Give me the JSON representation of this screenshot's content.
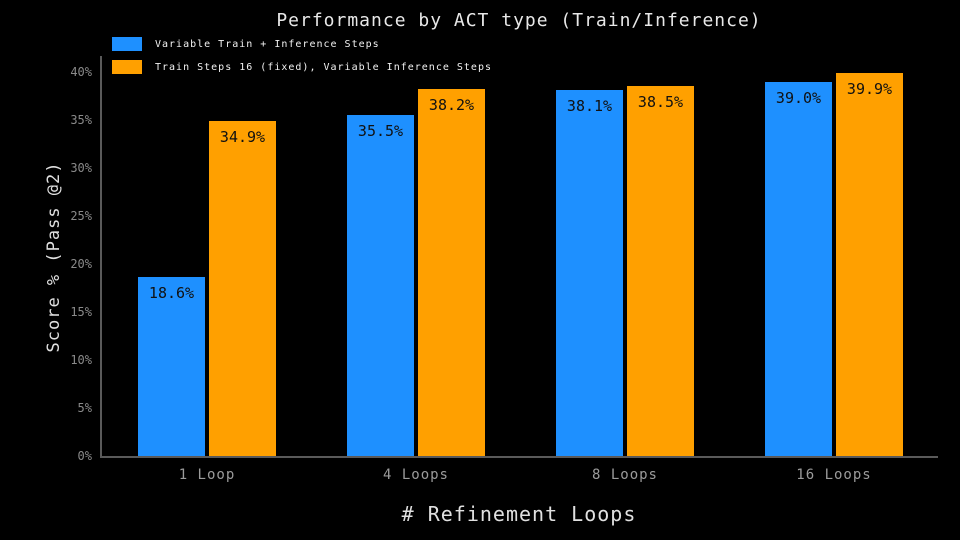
{
  "chart_data": {
    "type": "bar",
    "title": "Performance by ACT type (Train/Inference)",
    "xlabel": "# Refinement Loops",
    "ylabel": "Score % (Pass @2)",
    "categories": [
      "1 Loop",
      "4 Loops",
      "8 Loops",
      "16 Loops"
    ],
    "series": [
      {
        "name": "Variable Train + Inference Steps",
        "color": "#1E90FF",
        "values": [
          18.6,
          35.5,
          38.1,
          39.0
        ],
        "value_labels": [
          "18.6%",
          "35.5%",
          "38.1%",
          "39.0%"
        ]
      },
      {
        "name": "Train Steps 16 (fixed), Variable Inference Steps",
        "color": "#FFA000",
        "values": [
          34.9,
          38.2,
          38.5,
          39.9
        ],
        "value_labels": [
          "34.9%",
          "38.2%",
          "38.5%",
          "39.9%"
        ]
      }
    ],
    "ylim": [
      0,
      40
    ],
    "yticks": [
      0,
      5,
      10,
      15,
      20,
      25,
      30,
      35,
      40
    ],
    "ytick_labels": [
      "0%",
      "5%",
      "10%",
      "15%",
      "20%",
      "25%",
      "30%",
      "35%",
      "40%"
    ],
    "grid": false,
    "legend_position": "upper-left",
    "background_color": "#000000",
    "spine_color": "#5a5a5a",
    "value_label_color": "#111111"
  }
}
